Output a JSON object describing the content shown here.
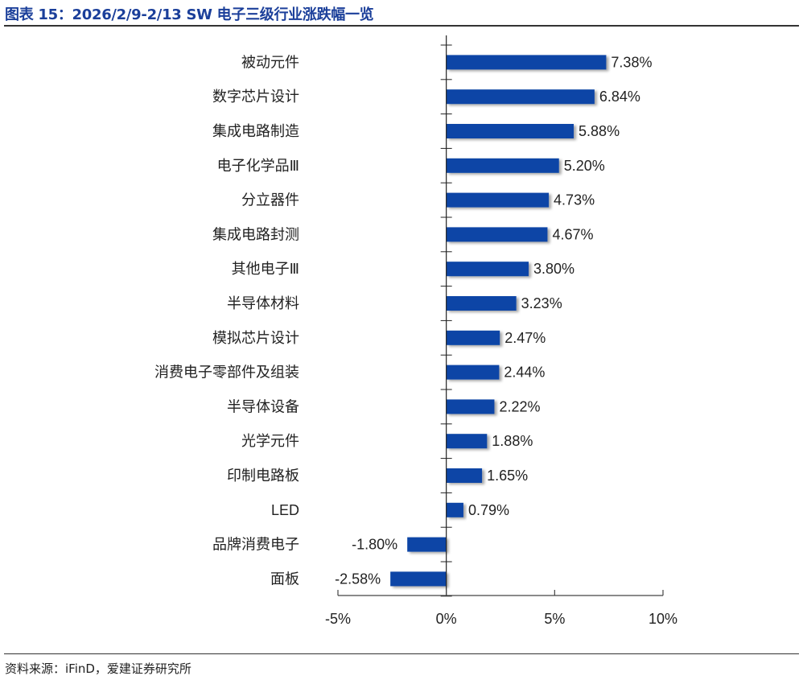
{
  "title": "图表 15：2026/2/9-2/13 SW 电子三级行业涨跌幅一览",
  "source": "资料来源：iFinD，爱建证券研究所",
  "chart_data": {
    "type": "bar",
    "orientation": "horizontal",
    "categories": [
      "被动元件",
      "数字芯片设计",
      "集成电路制造",
      "电子化学品Ⅲ",
      "分立器件",
      "集成电路封测",
      "其他电子Ⅲ",
      "半导体材料",
      "模拟芯片设计",
      "消费电子零部件及组装",
      "半导体设备",
      "光学元件",
      "印制电路板",
      "LED",
      "品牌消费电子",
      "面板"
    ],
    "values": [
      7.38,
      6.84,
      5.88,
      5.2,
      4.73,
      4.67,
      3.8,
      3.23,
      2.47,
      2.44,
      2.22,
      1.88,
      1.65,
      0.79,
      -1.8,
      -2.58
    ],
    "data_labels": [
      "7.38%",
      "6.84%",
      "5.88%",
      "5.20%",
      "4.73%",
      "4.67%",
      "3.80%",
      "3.23%",
      "2.47%",
      "2.44%",
      "2.22%",
      "1.88%",
      "1.65%",
      "0.79%",
      "-1.80%",
      "-2.58%"
    ],
    "xlim": [
      -5,
      10
    ],
    "ticks": [
      -5,
      0,
      5,
      10
    ],
    "tick_labels": [
      "-5%",
      "0%",
      "5%",
      "10%"
    ],
    "bar_color": "#0a44a6",
    "grid": false,
    "legend": "none"
  }
}
